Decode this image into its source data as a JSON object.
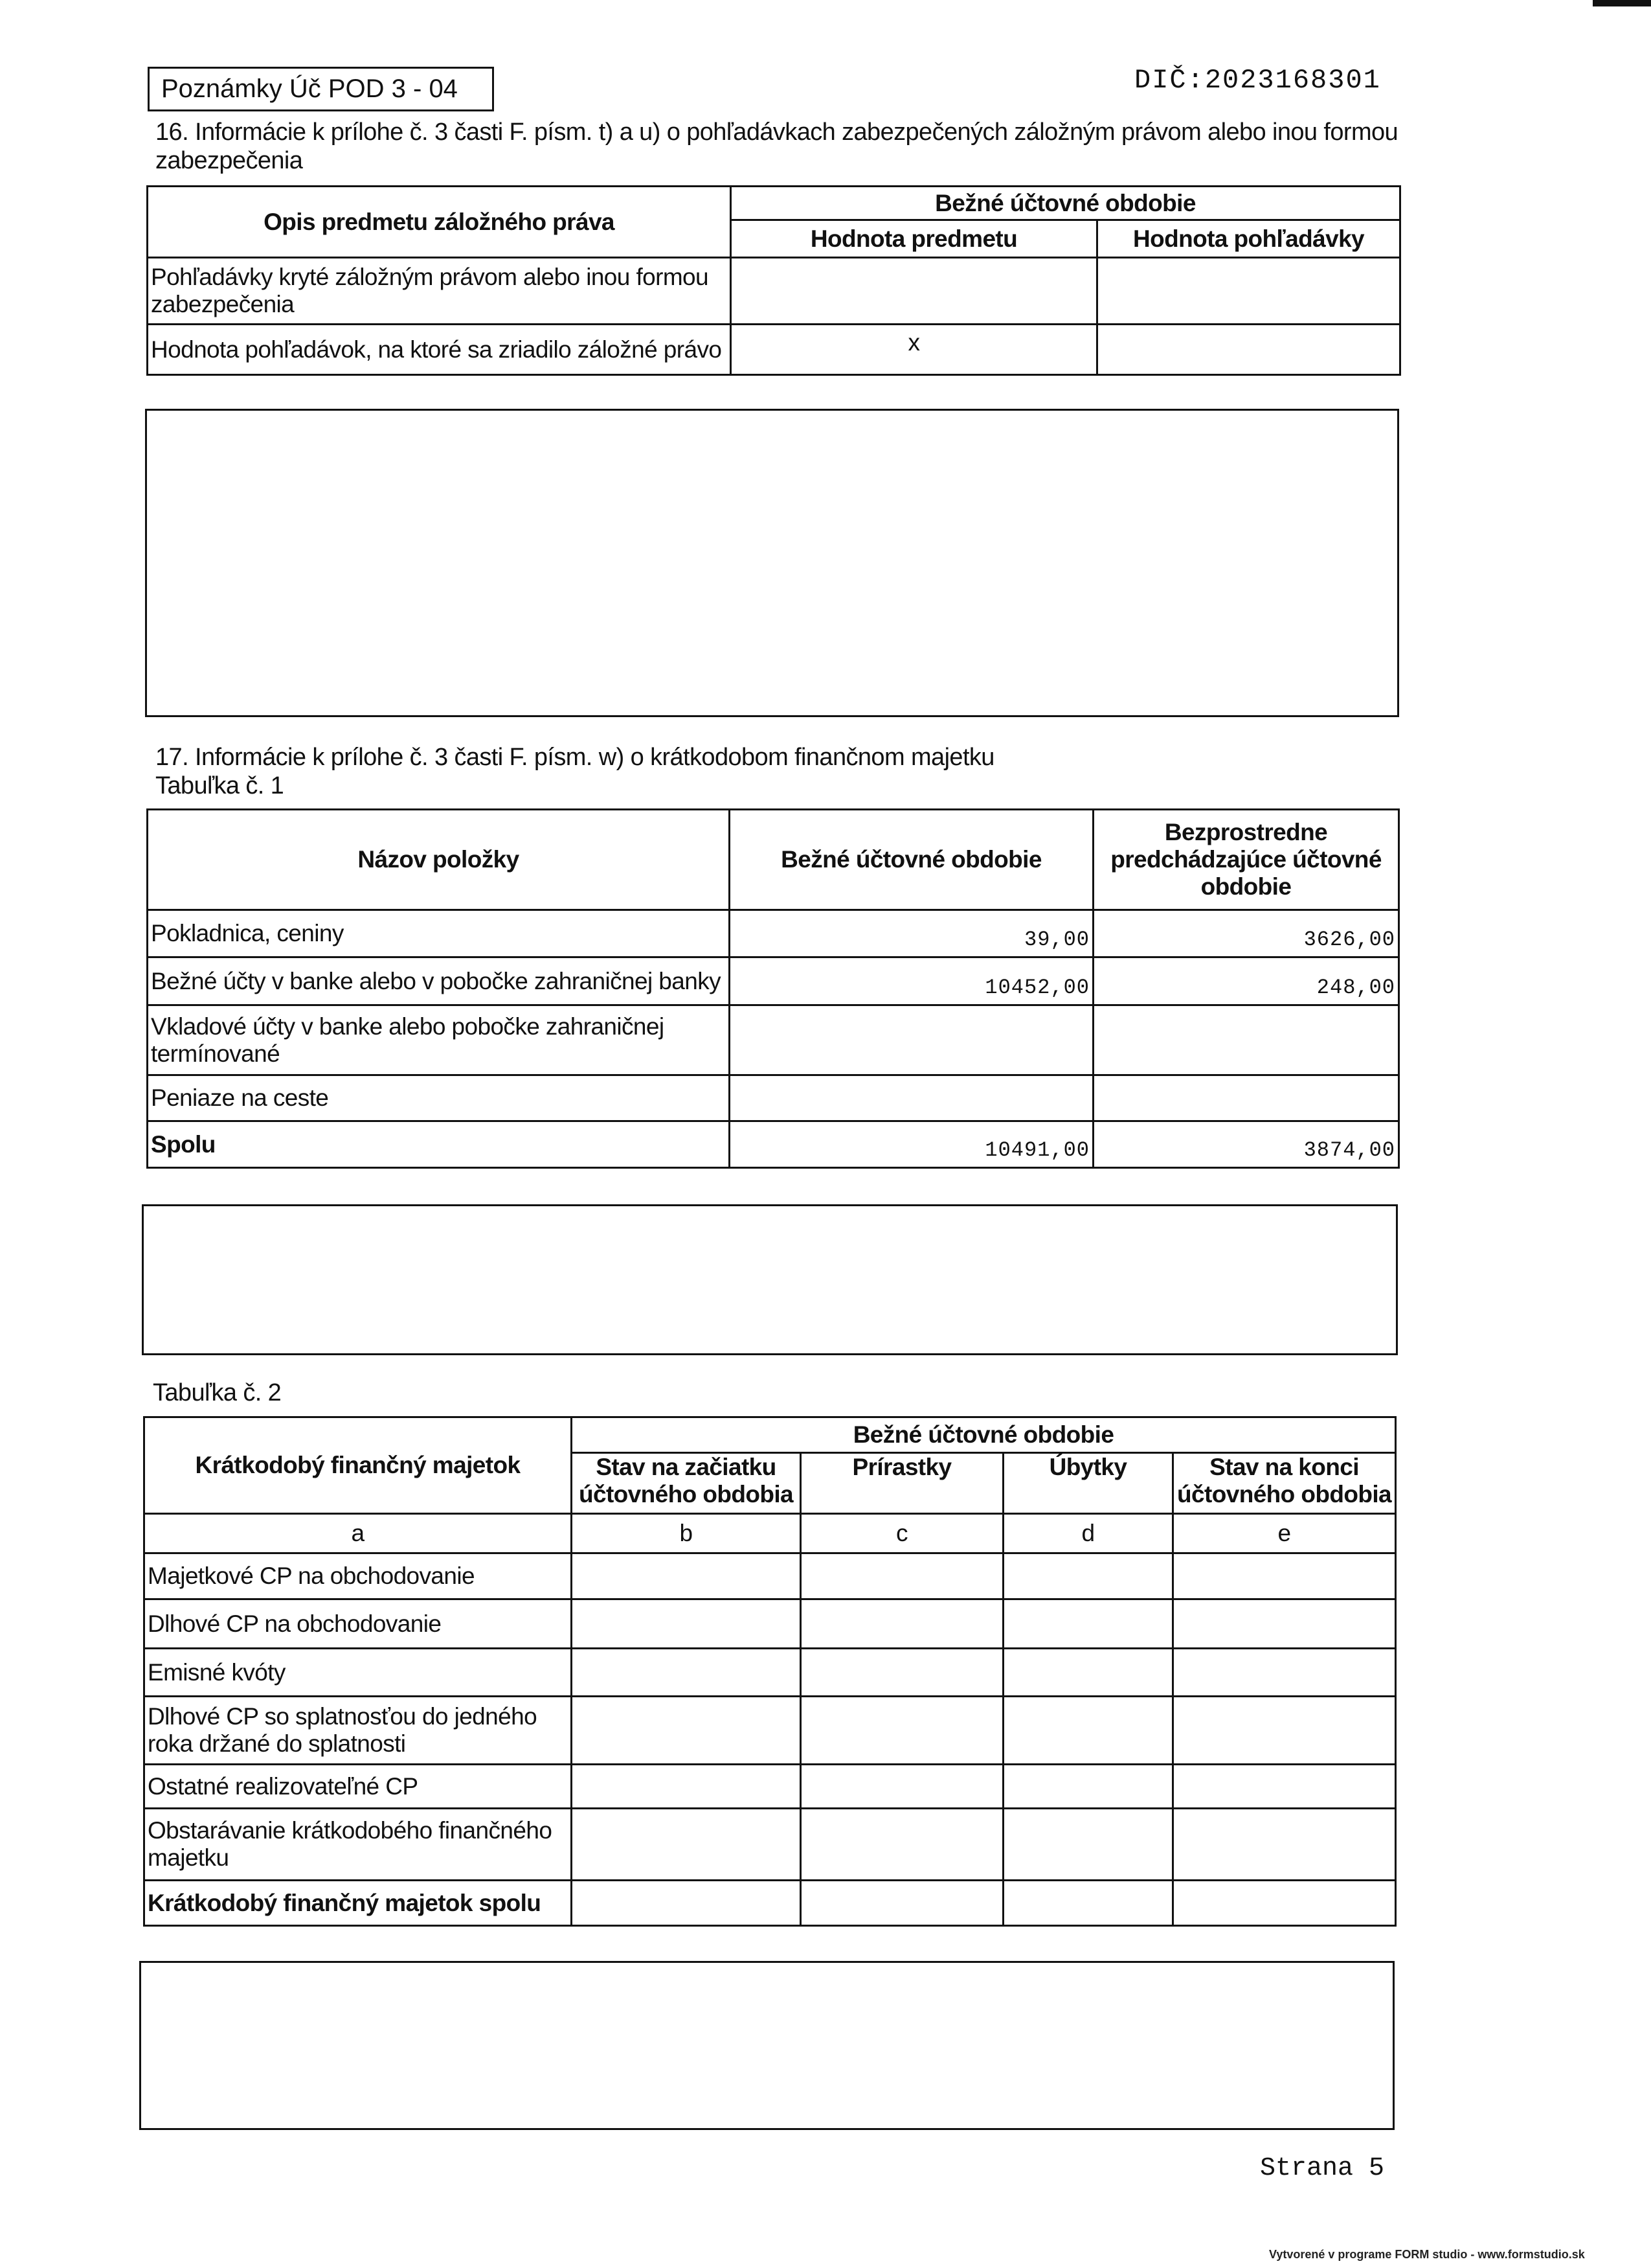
{
  "header": {
    "form_label": "Poznámky Úč POD 3 - 04",
    "dic": "DIČ:2023168301"
  },
  "section16": {
    "title_line1": "16. Informácie k prílohe č. 3 časti F. písm. t) a u) o pohľadávkach zabezpečených záložným právom alebo inou formou",
    "title_line2": "zabezpečenia",
    "table": {
      "col_desc": "Opis predmetu záložného práva",
      "group": "Bežné účtovné obdobie",
      "col_value_subject": "Hodnota predmetu",
      "col_value_receivable": "Hodnota pohľadávky",
      "rows": [
        {
          "label": "Pohľadávky kryté záložným právom alebo inou formou zabezpečenia",
          "subject": "",
          "receivable": ""
        },
        {
          "label": "Hodnota pohľadávok, na ktoré sa zriadilo záložné právo",
          "subject": "x",
          "receivable": ""
        }
      ]
    },
    "notes": ""
  },
  "section17": {
    "title": "17. Informácie k prílohe č. 3 časti F. písm. w) o krátkodobom finančnom majetku",
    "table1_label": "Tabuľka č. 1",
    "table1": {
      "col_name": "Názov položky",
      "col_current": "Bežné účtovné obdobie",
      "col_previous": "Bezprostredne predchádzajúce účtovné obdobie",
      "rows": [
        {
          "label": "Pokladnica, ceniny",
          "current": "39,00",
          "previous": "3626,00"
        },
        {
          "label": "Bežné účty v banke alebo v pobočke zahraničnej banky",
          "current": "10452,00",
          "previous": "248,00"
        },
        {
          "label": "Vkladové účty v banke alebo pobočke zahraničnej termínované",
          "current": "",
          "previous": ""
        },
        {
          "label": "Peniaze na ceste",
          "current": "",
          "previous": ""
        },
        {
          "label": "Spolu",
          "current": "10491,00",
          "previous": "3874,00"
        }
      ]
    },
    "notes1": "",
    "table2_label": "Tabuľka č. 2",
    "table2": {
      "col_name": "Krátkodobý finančný majetok",
      "group": "Bežné účtovné obdobie",
      "cols": [
        "Stav na začiatku účtovného obdobia",
        "Prírastky",
        "Úbytky",
        "Stav na konci účtovného obdobia"
      ],
      "letters": [
        "a",
        "b",
        "c",
        "d",
        "e"
      ],
      "rows": [
        {
          "label": "Majetkové CP na obchodovanie"
        },
        {
          "label": "Dlhové CP na obchodovanie"
        },
        {
          "label": "Emisné kvóty"
        },
        {
          "label": "Dlhové CP so splatnosťou do jedného roka držané do splatnosti"
        },
        {
          "label": "Ostatné realizovateľné CP"
        },
        {
          "label": "Obstarávanie krátkodobého finančného majetku"
        },
        {
          "label": "Krátkodobý finančný majetok spolu"
        }
      ]
    },
    "notes2": ""
  },
  "footer": {
    "page": "Strana 5",
    "generator": "Vytvorené v programe FORM studio - www.formstudio.sk"
  }
}
